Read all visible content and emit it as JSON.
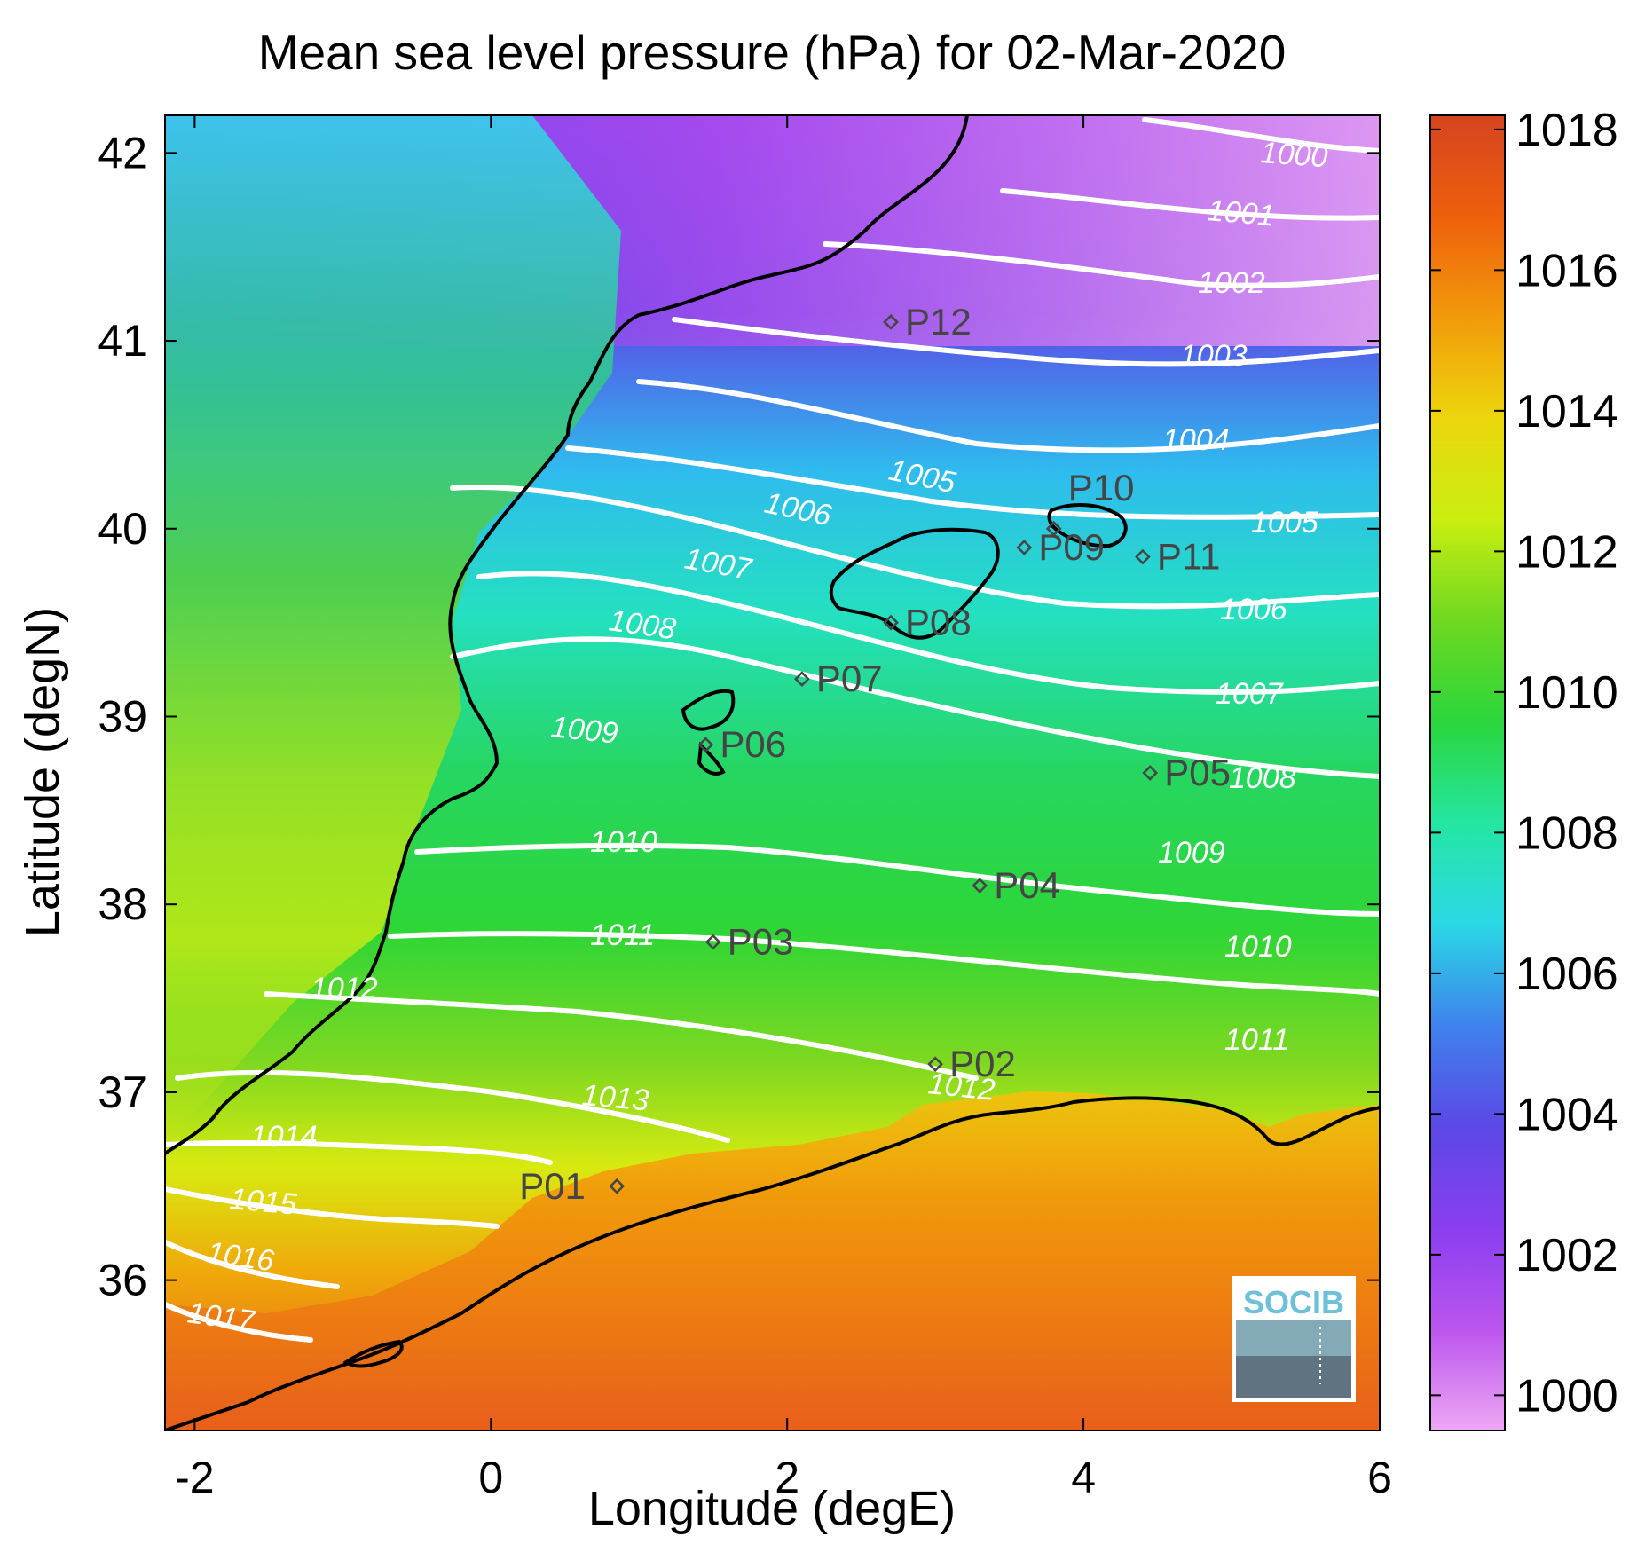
{
  "chart_data": {
    "type": "heatmap",
    "title": "Mean sea level pressure (hPa) for 02-Mar-2020",
    "xlabel": "Longitude (degE)",
    "ylabel": "Latitude (degN)",
    "xlim": [
      -2.2,
      6.0
    ],
    "ylim": [
      35.2,
      42.2
    ],
    "x_ticks": [
      "-2",
      "0",
      "2",
      "4",
      "6"
    ],
    "y_ticks": [
      "36",
      "37",
      "38",
      "39",
      "40",
      "41",
      "42"
    ],
    "colorbar": {
      "range": [
        999.5,
        1018.2
      ],
      "ticks": [
        "1000",
        "1002",
        "1004",
        "1006",
        "1008",
        "1010",
        "1012",
        "1014",
        "1016",
        "1018"
      ],
      "colors": [
        "#eea8f4",
        "#bb55ee",
        "#8a3ef0",
        "#5b48e6",
        "#3f82ec",
        "#2ad7e6",
        "#24e6a2",
        "#2ad63c",
        "#6ed820",
        "#c9ee10",
        "#ecd60c",
        "#f29a0a",
        "#ee5f0c",
        "#d64420"
      ]
    },
    "contour_labels": [
      "1000",
      "1001",
      "1002",
      "1003",
      "1004",
      "1005",
      "1005",
      "1006",
      "1006",
      "1007",
      "1007",
      "1008",
      "1008",
      "1009",
      "1009",
      "1010",
      "1010",
      "1011",
      "1011",
      "1012",
      "1012",
      "1013",
      "1014",
      "1015",
      "1016",
      "1017"
    ],
    "points": [
      {
        "name": "P01",
        "lon": 0.85,
        "lat": 36.5
      },
      {
        "name": "P02",
        "lon": 3.0,
        "lat": 37.15
      },
      {
        "name": "P03",
        "lon": 1.5,
        "lat": 37.8
      },
      {
        "name": "P04",
        "lon": 3.3,
        "lat": 38.1
      },
      {
        "name": "P05",
        "lon": 4.45,
        "lat": 38.7
      },
      {
        "name": "P06",
        "lon": 1.45,
        "lat": 38.85
      },
      {
        "name": "P07",
        "lon": 2.1,
        "lat": 39.2
      },
      {
        "name": "P08",
        "lon": 2.7,
        "lat": 39.5
      },
      {
        "name": "P09",
        "lon": 3.6,
        "lat": 39.9
      },
      {
        "name": "P10",
        "lon": 3.8,
        "lat": 40.0
      },
      {
        "name": "P11",
        "lon": 4.4,
        "lat": 39.85
      },
      {
        "name": "P12",
        "lon": 2.7,
        "lat": 41.1
      }
    ],
    "grid": false
  },
  "logo": {
    "text": "SOCIB"
  }
}
